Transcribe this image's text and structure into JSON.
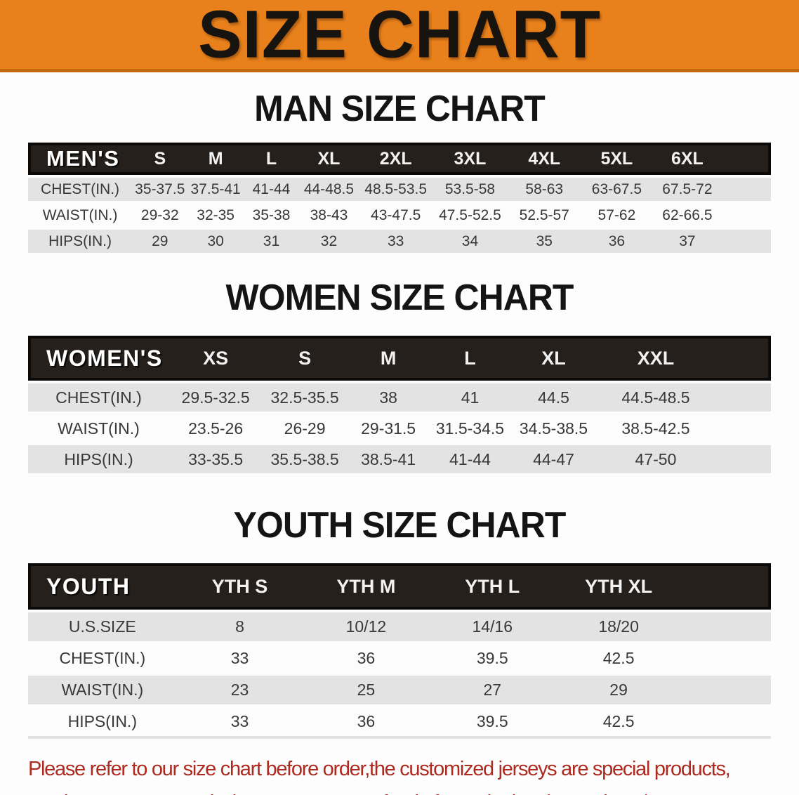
{
  "banner": {
    "title": "SIZE CHART"
  },
  "colors": {
    "banner_bg": "#E8811B",
    "banner_edge": "#C4690F",
    "banner_text": "#17130E",
    "header_bg": "#25201C",
    "header_border": "#0C0A09",
    "stripe_gray": "#E3E3E3",
    "stripe_white": "#FCFCFC",
    "heading_text": "#141414",
    "cell_text": "#383838",
    "footer_text": "#AE2A20"
  },
  "sections": [
    {
      "heading": "MAN SIZE CHART",
      "table": {
        "corner": "MEN'S",
        "columns": [
          "S",
          "M",
          "L",
          "XL",
          "2XL",
          "3XL",
          "4XL",
          "5XL",
          "6XL"
        ],
        "rows": [
          {
            "label": "CHEST(IN.)",
            "values": [
              "35-37.5",
              "37.5-41",
              "41-44",
              "44-48.5",
              "48.5-53.5",
              "53.5-58",
              "58-63",
              "63-67.5",
              "67.5-72"
            ]
          },
          {
            "label": "WAIST(IN.)",
            "values": [
              "29-32",
              "32-35",
              "35-38",
              "38-43",
              "43-47.5",
              "47.5-52.5",
              "52.5-57",
              "57-62",
              "62-66.5"
            ]
          },
          {
            "label": "HIPS(IN.)",
            "values": [
              "29",
              "30",
              "31",
              "32",
              "33",
              "34",
              "35",
              "36",
              "37"
            ]
          }
        ]
      }
    },
    {
      "heading": "WOMEN SIZE CHART",
      "table": {
        "corner": "WOMEN'S",
        "columns": [
          "XS",
          "S",
          "M",
          "L",
          "XL",
          "XXL"
        ],
        "rows": [
          {
            "label": "CHEST(IN.)",
            "values": [
              "29.5-32.5",
              "32.5-35.5",
              "38",
              "41",
              "44.5",
              "44.5-48.5"
            ]
          },
          {
            "label": "WAIST(IN.)",
            "values": [
              "23.5-26",
              "26-29",
              "29-31.5",
              "31.5-34.5",
              "34.5-38.5",
              "38.5-42.5"
            ]
          },
          {
            "label": "HIPS(IN.)",
            "values": [
              "33-35.5",
              "35.5-38.5",
              "38.5-41",
              "41-44",
              "44-47",
              "47-50"
            ]
          }
        ]
      }
    },
    {
      "heading": "YOUTH SIZE CHART",
      "table": {
        "corner": "YOUTH",
        "columns": [
          "YTH S",
          "YTH M",
          "YTH L",
          "YTH XL"
        ],
        "rows": [
          {
            "label": "U.S.SIZE",
            "values": [
              "8",
              "10/12",
              "14/16",
              "18/20"
            ]
          },
          {
            "label": "CHEST(IN.)",
            "values": [
              "33",
              "36",
              "39.5",
              "42.5"
            ]
          },
          {
            "label": "WAIST(IN.)",
            "values": [
              "23",
              "25",
              "27",
              "29"
            ]
          },
          {
            "label": "HIPS(IN.)",
            "values": [
              "33",
              "36",
              "39.5",
              "42.5"
            ]
          }
        ]
      }
    }
  ],
  "footer": {
    "line1": "Please refer to our size chart before order,the customized jerseys are special products,",
    "line2": "we don't accept cancel, change, teturn or refund after order has been placed!"
  }
}
